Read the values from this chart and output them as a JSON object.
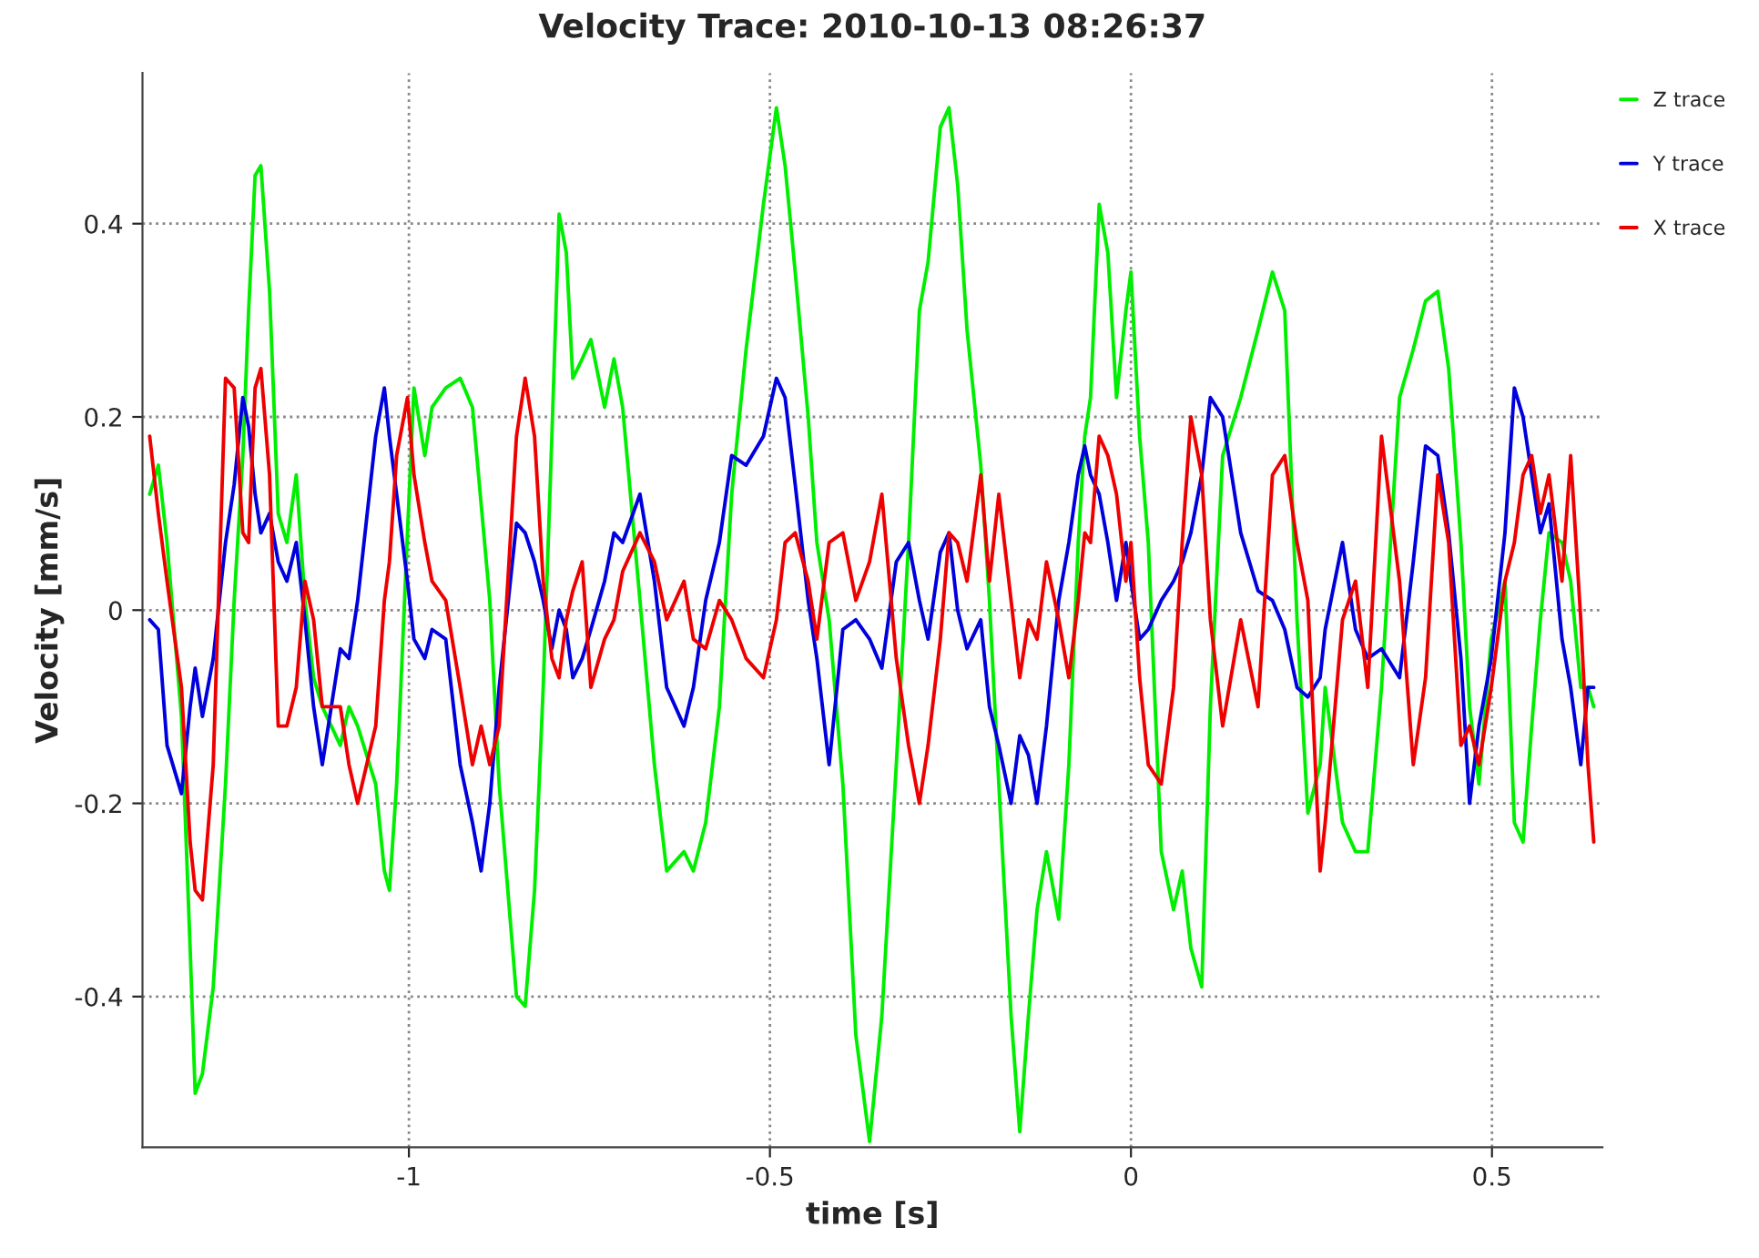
{
  "chart_data": {
    "type": "line",
    "title": "Velocity Trace: 2010-10-13 08:26:37",
    "xlabel": "time [s]",
    "ylabel": "Velocity [mm/s]",
    "x": [
      -1.359,
      -1.347,
      -1.335,
      -1.315,
      -1.303,
      -1.296,
      -1.286,
      -1.271,
      -1.254,
      -1.242,
      -1.23,
      -1.222,
      -1.213,
      -1.205,
      -1.193,
      -1.181,
      -1.169,
      -1.156,
      -1.144,
      -1.132,
      -1.12,
      -1.095,
      -1.083,
      -1.071,
      -1.046,
      -1.034,
      -1.027,
      -1.017,
      -1.002,
      -0.993,
      -0.978,
      -0.968,
      -0.949,
      -0.929,
      -0.912,
      -0.9,
      -0.888,
      -0.875,
      -0.851,
      -0.839,
      -0.826,
      -0.814,
      -0.802,
      -0.792,
      -0.782,
      -0.773,
      -0.76,
      -0.748,
      -0.729,
      -0.716,
      -0.704,
      -0.68,
      -0.66,
      -0.643,
      -0.619,
      -0.606,
      -0.589,
      -0.57,
      -0.553,
      -0.533,
      -0.509,
      -0.491,
      -0.479,
      -0.465,
      -0.447,
      -0.435,
      -0.418,
      -0.399,
      -0.381,
      -0.362,
      -0.345,
      -0.325,
      -0.308,
      -0.293,
      -0.281,
      -0.264,
      -0.252,
      -0.24,
      -0.227,
      -0.208,
      -0.196,
      -0.183,
      -0.166,
      -0.154,
      -0.142,
      -0.13,
      -0.117,
      -0.1,
      -0.086,
      -0.073,
      -0.064,
      -0.056,
      -0.044,
      -0.032,
      -0.02,
      -0.007,
      0,
      0.012,
      0.024,
      0.042,
      0.059,
      0.071,
      0.083,
      0.098,
      0.11,
      0.127,
      0.152,
      0.176,
      0.196,
      0.213,
      0.23,
      0.245,
      0.262,
      0.269,
      0.293,
      0.311,
      0.328,
      0.347,
      0.372,
      0.391,
      0.408,
      0.425,
      0.44,
      0.457,
      0.469,
      0.482,
      0.499,
      0.518,
      0.531,
      0.543,
      0.555,
      0.567,
      0.579,
      0.597,
      0.609,
      0.623,
      0.633,
      0.641
    ],
    "series": [
      {
        "name": "Z trace",
        "color": "#00ee00",
        "values": [
          0.12,
          0.15,
          0.07,
          -0.11,
          -0.35,
          -0.5,
          -0.48,
          -0.39,
          -0.18,
          0.01,
          0.16,
          0.31,
          0.45,
          0.46,
          0.33,
          0.1,
          0.07,
          0.14,
          0.01,
          -0.07,
          -0.1,
          -0.14,
          -0.1,
          -0.12,
          -0.18,
          -0.27,
          -0.29,
          -0.18,
          0.08,
          0.23,
          0.16,
          0.21,
          0.23,
          0.24,
          0.21,
          0.11,
          0.01,
          -0.18,
          -0.4,
          -0.41,
          -0.29,
          -0.08,
          0.18,
          0.41,
          0.37,
          0.24,
          0.26,
          0.28,
          0.21,
          0.26,
          0.21,
          0.01,
          -0.16,
          -0.27,
          -0.25,
          -0.27,
          -0.22,
          -0.1,
          0.12,
          0.27,
          0.42,
          0.52,
          0.46,
          0.35,
          0.2,
          0.07,
          -0.01,
          -0.18,
          -0.44,
          -0.55,
          -0.42,
          -0.16,
          0.07,
          0.31,
          0.36,
          0.5,
          0.52,
          0.44,
          0.29,
          0.15,
          0.01,
          -0.18,
          -0.42,
          -0.54,
          -0.42,
          -0.31,
          -0.25,
          -0.32,
          -0.16,
          0.07,
          0.18,
          0.22,
          0.42,
          0.37,
          0.22,
          0.31,
          0.35,
          0.18,
          0.07,
          -0.25,
          -0.31,
          -0.27,
          -0.35,
          -0.39,
          -0.1,
          0.16,
          0.22,
          0.29,
          0.35,
          0.31,
          -0.01,
          -0.21,
          -0.16,
          -0.08,
          -0.22,
          -0.25,
          -0.25,
          -0.08,
          0.22,
          0.27,
          0.32,
          0.33,
          0.25,
          0.07,
          -0.1,
          -0.18,
          -0.03,
          0.03,
          -0.22,
          -0.24,
          -0.12,
          -0.01,
          0.08,
          0.07,
          0.03,
          -0.08,
          -0.08,
          -0.1
        ]
      },
      {
        "name": "Y trace",
        "color": "#0000dd",
        "values": [
          -0.01,
          -0.02,
          -0.14,
          -0.19,
          -0.1,
          -0.06,
          -0.11,
          -0.05,
          0.07,
          0.13,
          0.22,
          0.19,
          0.12,
          0.08,
          0.1,
          0.05,
          0.03,
          0.07,
          -0.01,
          -0.1,
          -0.16,
          -0.04,
          -0.05,
          0.01,
          0.18,
          0.23,
          0.18,
          0.12,
          0.03,
          -0.03,
          -0.05,
          -0.02,
          -0.03,
          -0.16,
          -0.22,
          -0.27,
          -0.2,
          -0.08,
          0.09,
          0.08,
          0.05,
          0.01,
          -0.04,
          0.0,
          -0.02,
          -0.07,
          -0.05,
          -0.02,
          0.03,
          0.08,
          0.07,
          0.12,
          0.03,
          -0.08,
          -0.12,
          -0.08,
          0.01,
          0.07,
          0.16,
          0.15,
          0.18,
          0.24,
          0.22,
          0.13,
          0.01,
          -0.05,
          -0.16,
          -0.02,
          -0.01,
          -0.03,
          -0.06,
          0.05,
          0.07,
          0.01,
          -0.03,
          0.06,
          0.08,
          0.0,
          -0.04,
          -0.01,
          -0.1,
          -0.14,
          -0.2,
          -0.13,
          -0.15,
          -0.2,
          -0.12,
          0.01,
          0.07,
          0.14,
          0.17,
          0.14,
          0.12,
          0.07,
          0.01,
          0.07,
          0.03,
          -0.03,
          -0.02,
          0.01,
          0.03,
          0.05,
          0.08,
          0.14,
          0.22,
          0.2,
          0.08,
          0.02,
          0.01,
          -0.02,
          -0.08,
          -0.09,
          -0.07,
          -0.02,
          0.07,
          -0.02,
          -0.05,
          -0.04,
          -0.07,
          0.05,
          0.17,
          0.16,
          0.08,
          -0.05,
          -0.2,
          -0.12,
          -0.05,
          0.08,
          0.23,
          0.2,
          0.14,
          0.08,
          0.11,
          -0.03,
          -0.08,
          -0.16,
          -0.08,
          -0.08
        ]
      },
      {
        "name": "X trace",
        "color": "#ee0000",
        "values": [
          0.18,
          0.1,
          0.03,
          -0.08,
          -0.24,
          -0.29,
          -0.3,
          -0.16,
          0.24,
          0.23,
          0.08,
          0.07,
          0.23,
          0.25,
          0.14,
          -0.12,
          -0.12,
          -0.08,
          0.03,
          -0.01,
          -0.1,
          -0.1,
          -0.16,
          -0.2,
          -0.12,
          0.01,
          0.05,
          0.16,
          0.22,
          0.14,
          0.07,
          0.03,
          0.01,
          -0.08,
          -0.16,
          -0.12,
          -0.16,
          -0.12,
          0.18,
          0.24,
          0.18,
          0.03,
          -0.05,
          -0.07,
          -0.01,
          0.02,
          0.05,
          -0.08,
          -0.03,
          -0.01,
          0.04,
          0.08,
          0.05,
          -0.01,
          0.03,
          -0.03,
          -0.04,
          0.01,
          -0.01,
          -0.05,
          -0.07,
          -0.01,
          0.07,
          0.08,
          0.03,
          -0.03,
          0.07,
          0.08,
          0.01,
          0.05,
          0.12,
          -0.05,
          -0.14,
          -0.2,
          -0.14,
          -0.03,
          0.08,
          0.07,
          0.03,
          0.14,
          0.03,
          0.12,
          0.01,
          -0.07,
          -0.01,
          -0.03,
          0.05,
          -0.01,
          -0.07,
          0.01,
          0.08,
          0.07,
          0.18,
          0.16,
          0.12,
          0.03,
          0.07,
          -0.07,
          -0.16,
          -0.18,
          -0.08,
          0.07,
          0.2,
          0.14,
          -0.01,
          -0.12,
          -0.01,
          -0.1,
          0.14,
          0.16,
          0.07,
          0.01,
          -0.27,
          -0.22,
          -0.01,
          0.03,
          -0.08,
          0.18,
          0.03,
          -0.16,
          -0.07,
          0.14,
          0.07,
          -0.14,
          -0.12,
          -0.16,
          -0.08,
          0.03,
          0.07,
          0.14,
          0.16,
          0.1,
          0.14,
          0.03,
          0.16,
          -0.01,
          -0.16,
          -0.24
        ]
      }
    ],
    "xlim": [
      -1.369,
      0.653
    ],
    "ylim": [
      -0.556,
      0.556
    ],
    "xticks": [
      -1,
      -0.5,
      0,
      0.5
    ],
    "yticks": [
      -0.4,
      -0.2,
      0,
      0.2,
      0.4
    ],
    "grid": true,
    "legend": "top right",
    "line_style": "solid",
    "marker": "none"
  }
}
